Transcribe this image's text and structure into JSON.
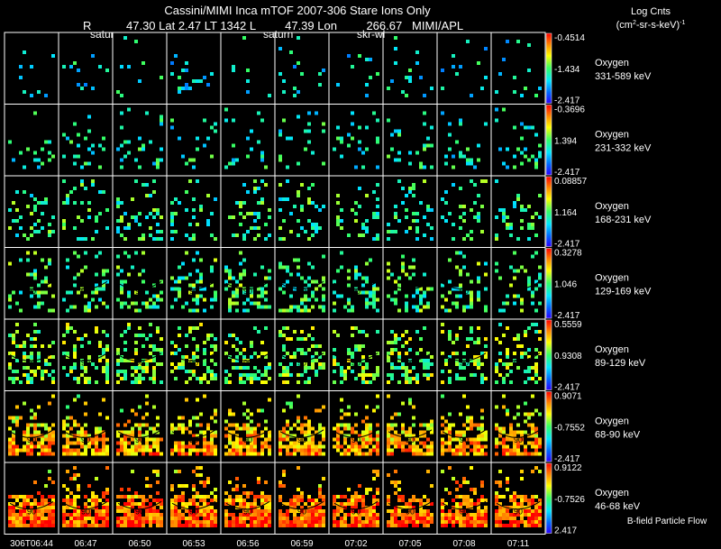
{
  "chart_data": {
    "type": "heatmap",
    "title": "Cassini/MIMI Inca mTOF  2007-306   Stare    Ions Only",
    "subtitle_left": "R",
    "subtitle": "47.30 Lat 2.47 LT 1342 L         47.39 Lon         266.67   MIMI/APL",
    "colorbar_title": "Log Cnts",
    "colorbar_units_base": "(cm",
    "colorbar_units_sup1": "2",
    "colorbar_units_mid": "-sr-s-keV)",
    "colorbar_units_sup2": "-1",
    "frame_labels": [
      "satur",
      "saturn",
      "skr-wl"
    ],
    "time_labels": [
      "306T06:44",
      "06:47",
      "06:50",
      "06:53",
      "06:56",
      "06:59",
      "07:02",
      "07:05",
      "07:08",
      "07:11"
    ],
    "footer_label": "B-field Particle Flow",
    "contour_label": "90",
    "rows": [
      {
        "species": "Oxygen",
        "energy": "331-589 keV",
        "cmax": "-0.4514",
        "cmid": "-1.434",
        "cmin": "-2.417",
        "level": 0.35,
        "density": 0.05
      },
      {
        "species": "Oxygen",
        "energy": "231-332 keV",
        "cmax": "-0.3696",
        "cmid": "1.394",
        "cmin": "-2.417",
        "level": 0.4,
        "density": 0.1
      },
      {
        "species": "Oxygen",
        "energy": "168-231 keV",
        "cmax": "0.08857",
        "cmid": "1.164",
        "cmin": "-2.417",
        "level": 0.45,
        "density": 0.16
      },
      {
        "species": "Oxygen",
        "energy": "129-169 keV",
        "cmax": "0.3278",
        "cmid": "1.046",
        "cmin": "-2.417",
        "level": 0.48,
        "density": 0.22
      },
      {
        "species": "Oxygen",
        "energy": "89-129 keV",
        "cmax": "0.5559",
        "cmid": "0.9308",
        "cmin": "-2.417",
        "level": 0.55,
        "density": 0.3
      },
      {
        "species": "Oxygen",
        "energy": "68-90 keV",
        "cmax": "0.9071",
        "cmid": "-0.7552",
        "cmin": "-2.417",
        "level": 0.7,
        "density": 0.34
      },
      {
        "species": "Oxygen",
        "energy": "46-68 keV",
        "cmax": "0.9122",
        "cmid": "-0.7526",
        "cmin": "2.417",
        "level": 0.8,
        "density": 0.4
      }
    ]
  }
}
